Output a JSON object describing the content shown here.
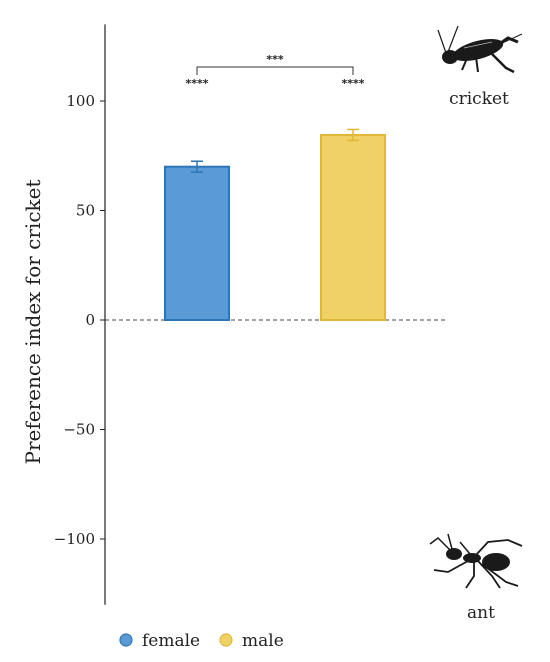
{
  "chart_data": {
    "type": "bar",
    "ylabel": "Preference index for cricket",
    "ylim": [
      -130,
      135
    ],
    "yticks": [
      -100,
      -50,
      0,
      50,
      100
    ],
    "reference_line": 0,
    "series": [
      {
        "name": "female",
        "value": 70,
        "error": 2.5,
        "significance": "****",
        "color": "#5b9bd5",
        "edge": "#2e75b6"
      },
      {
        "name": "male",
        "value": 84.5,
        "error": 2.5,
        "significance": "****",
        "color": "#f0d165",
        "edge": "#e0b838"
      }
    ],
    "comparison": {
      "label": "***",
      "between": [
        "female",
        "male"
      ]
    },
    "annotations": {
      "top": "cricket",
      "bottom": "ant"
    },
    "legend": {
      "placement": "bottom-left"
    }
  }
}
